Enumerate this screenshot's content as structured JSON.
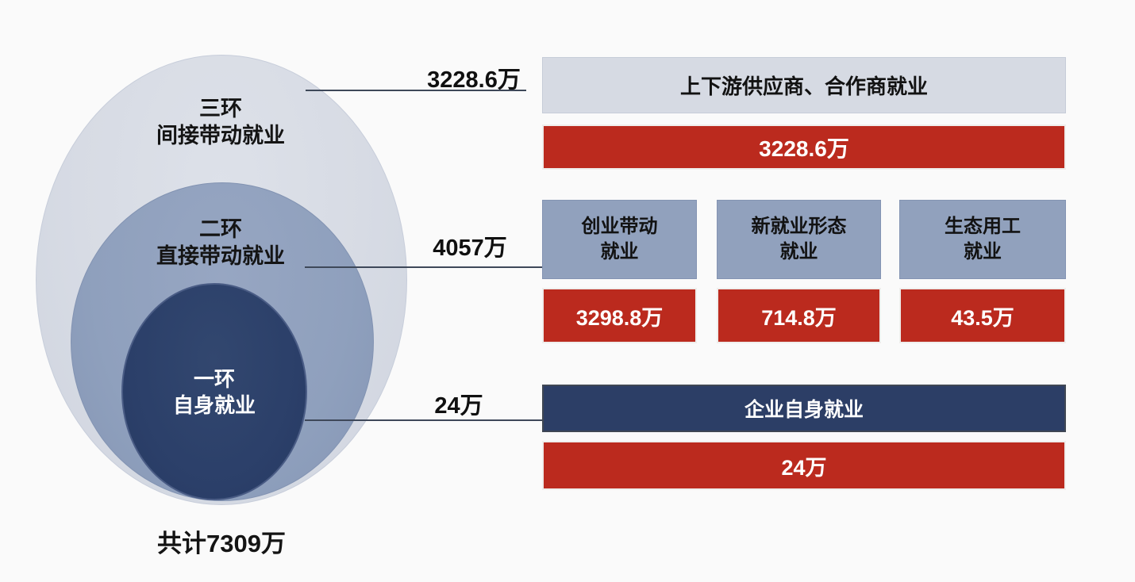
{
  "colors": {
    "background": "#fafafa",
    "ring_outer": "#d7dbe4",
    "ring_middle": "#8fa0bd",
    "ring_inner": "#2b3f69",
    "box_blue": "#91a1bd",
    "header_gray": "#d6dae3",
    "bar_red": "#bb2a1e",
    "bar_navy": "#2c3e66",
    "leader_line": "#3e4859",
    "text_dark": "#141414",
    "text_light": "#ffffff"
  },
  "venn": {
    "rings": [
      {
        "title": "三环",
        "subtitle": "间接带动就业",
        "value": "3228.6万"
      },
      {
        "title": "二环",
        "subtitle": "直接带动就业",
        "value": "4057万"
      },
      {
        "title": "一环",
        "subtitle": "自身就业",
        "value": "24万"
      }
    ],
    "total_label": "共计7309万"
  },
  "callouts": [
    "3228.6万",
    "4057万",
    "24万"
  ],
  "right_panel": {
    "row_top": {
      "header": "上下游供应商、合作商就业",
      "value": "3228.6万"
    },
    "row_middle": [
      {
        "header_line1": "创业带动",
        "header_line2": "就业",
        "value": "3298.8万"
      },
      {
        "header_line1": "新就业形态",
        "header_line2": "就业",
        "value": "714.8万"
      },
      {
        "header_line1": "生态用工",
        "header_line2": "就业",
        "value": "43.5万"
      }
    ],
    "row_bottom": {
      "header": "企业自身就业",
      "value": "24万"
    }
  },
  "chart_data": {
    "type": "concentric_rings",
    "unit": "万",
    "total": {
      "label": "共计7309万",
      "value": 7309
    },
    "rings": [
      {
        "ring": "三环",
        "category": "间接带动就业",
        "value": 3228.6,
        "breakdown": [
          {
            "label": "上下游供应商、合作商就业",
            "value": 3228.6
          }
        ]
      },
      {
        "ring": "二环",
        "category": "直接带动就业",
        "value": 4057,
        "breakdown": [
          {
            "label": "创业带动就业",
            "value": 3298.8
          },
          {
            "label": "新就业形态就业",
            "value": 714.8
          },
          {
            "label": "生态用工就业",
            "value": 43.5
          }
        ]
      },
      {
        "ring": "一环",
        "category": "自身就业",
        "value": 24,
        "breakdown": [
          {
            "label": "企业自身就业",
            "value": 24
          }
        ]
      }
    ]
  }
}
